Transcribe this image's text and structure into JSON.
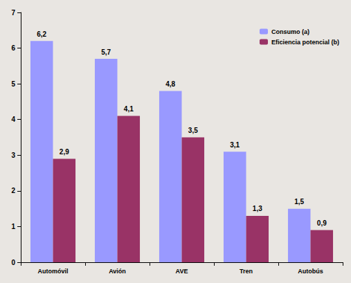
{
  "chart_data": {
    "type": "bar",
    "categories": [
      "Automóvil",
      "Avión",
      "AVE",
      "Tren",
      "Autobús"
    ],
    "series": [
      {
        "name": "Consumo (a)",
        "color": "#9999ff",
        "values": [
          6.2,
          5.7,
          4.8,
          3.1,
          1.5
        ],
        "value_labels": [
          "6,2",
          "5,7",
          "4,8",
          "3,1",
          "1,5"
        ]
      },
      {
        "name": "Eficiencia potencial (b)",
        "color": "#993366",
        "values": [
          2.9,
          4.1,
          3.5,
          1.3,
          0.9
        ],
        "value_labels": [
          "2,9",
          "4,1",
          "3,5",
          "1,3",
          "0,9"
        ]
      }
    ],
    "ylim": [
      0,
      7
    ],
    "yticks": [
      0,
      1,
      2,
      3,
      4,
      5,
      6,
      7
    ],
    "grid": false,
    "legend": "upper right",
    "data_labels": true
  }
}
